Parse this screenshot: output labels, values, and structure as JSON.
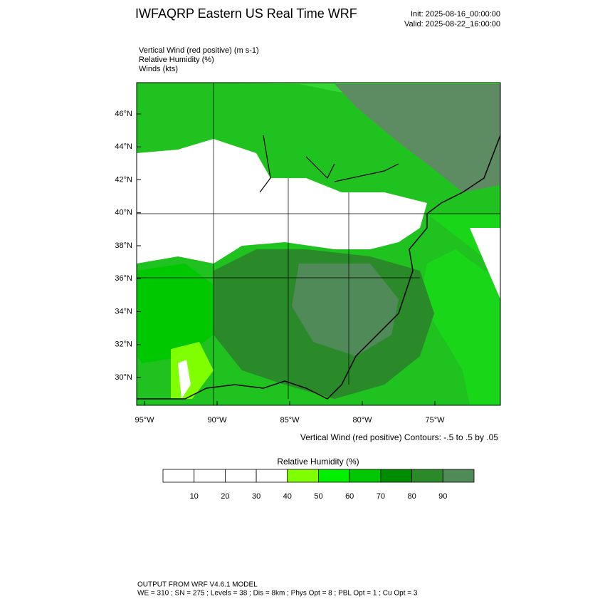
{
  "header": {
    "title": "IWFAQRP Eastern US Real Time WRF",
    "init": "Init: 2025-08-16_00:00:00",
    "valid": "Valid: 2025-08-22_16:00:00"
  },
  "fields": [
    "Vertical Wind (red positive)   (m s-1)",
    "Relative Humidity   (%)",
    "Winds   (kts)"
  ],
  "axes": {
    "latitude_labels": [
      "46°N",
      "44°N",
      "42°N",
      "40°N",
      "38°N",
      "36°N",
      "34°N",
      "32°N",
      "30°N"
    ],
    "longitude_labels": [
      "95°W",
      "90°W",
      "85°W",
      "80°W",
      "75°W"
    ]
  },
  "contour_note": "Vertical Wind (red positive) Contours: -.5 to .5 by .05",
  "colorbar": {
    "title": "Relative Humidity   (%)",
    "labels": [
      10,
      20,
      30,
      40,
      50,
      60,
      70,
      80,
      90
    ],
    "colors": [
      "#ffffff",
      "#ffffff",
      "#ffffff",
      "#ffffff",
      "#80ff00",
      "#00f000",
      "#00c800",
      "#008c00",
      "#2a8a2a",
      "#4f8a58"
    ]
  },
  "footer": [
    "OUTPUT FROM WRF V4.6.1 MODEL",
    "WE = 310 ; SN = 275 ; Levels = 38 ; Dis = 8km ; Phys Opt = 8 ; PBL Opt = 1 ; Cu Opt = 3"
  ]
}
